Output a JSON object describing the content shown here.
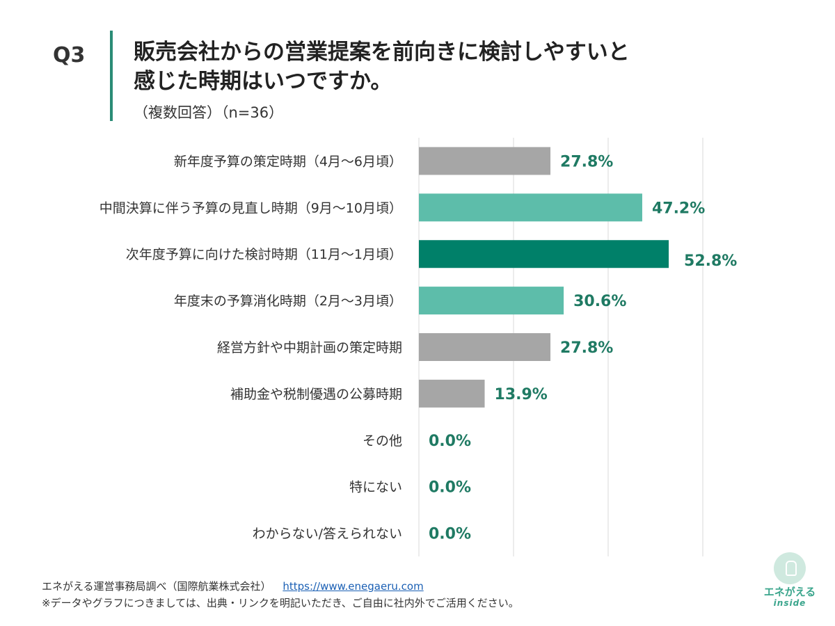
{
  "header": {
    "q_label": "Q3",
    "title_line1": "販売会社からの営業提案を前向きに検討しやすいと",
    "title_line2": "感じた時期はいつですか。",
    "subtitle": "（複数回答）（n=36）"
  },
  "chart_data": {
    "type": "bar",
    "orientation": "horizontal",
    "categories": [
      "新年度予算の策定時期（4月～6月頃）",
      "中間決算に伴う予算の見直し時期（9月～10月頃）",
      "次年度予算に向けた検討時期（11月～1月頃）",
      "年度末の予算消化時期（2月～3月頃）",
      "経営方針や中期計画の策定時期",
      "補助金や税制優遇の公募時期",
      "その他",
      "特にない",
      "わからない/答えられない"
    ],
    "values": [
      27.8,
      47.2,
      52.8,
      30.6,
      27.8,
      13.9,
      0.0,
      0.0,
      0.0
    ],
    "value_labels": [
      "27.8%",
      "47.2%",
      "52.8%",
      "30.6%",
      "27.8%",
      "13.9%",
      "0.0%",
      "0.0%",
      "0.0%"
    ],
    "bar_colors": [
      "#a6a6a6",
      "#5dbdaa",
      "#008069",
      "#5dbdaa",
      "#a6a6a6",
      "#a6a6a6",
      "#a6a6a6",
      "#a6a6a6",
      "#a6a6a6"
    ],
    "highlight_index": 2,
    "xlim": [
      0,
      60
    ],
    "grid": true,
    "label_color": "#1f7a63"
  },
  "footer": {
    "source": "エネがえる運営事務局調べ（国際航業株式会社）",
    "link": "https://www.enegaeru.com",
    "note": "※データやグラフにつきましては、出典・リンクを明記いただき、ご自由に社内外でご活用ください。"
  },
  "logo": {
    "name": "エネがえる",
    "sub": "inside",
    "icon": "lightbulb-icon"
  }
}
